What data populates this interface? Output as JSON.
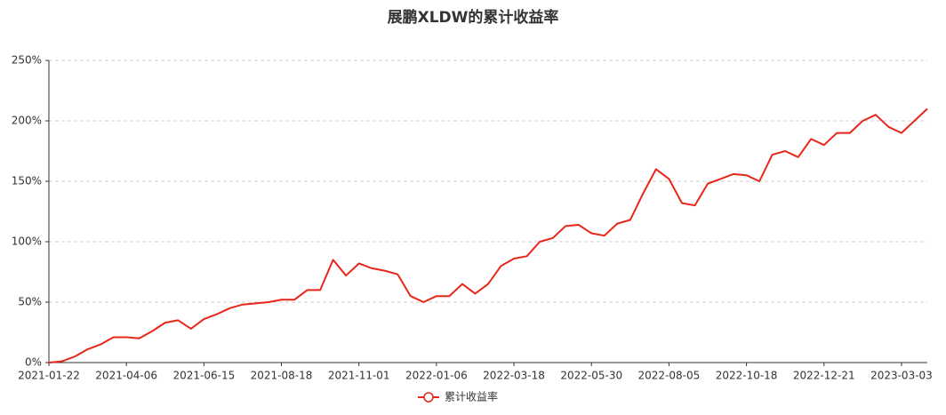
{
  "chart_data": {
    "type": "line",
    "title": "展鹏XLDW的累计收益率",
    "categories": [
      "2021-01-22",
      null,
      null,
      null,
      null,
      null,
      "2021-04-06",
      null,
      null,
      null,
      null,
      null,
      "2021-06-15",
      null,
      null,
      null,
      null,
      null,
      "2021-08-18",
      null,
      null,
      null,
      null,
      null,
      "2021-11-01",
      null,
      null,
      null,
      null,
      null,
      "2022-01-06",
      null,
      null,
      null,
      null,
      null,
      "2022-03-18",
      null,
      null,
      null,
      null,
      null,
      "2022-05-30",
      null,
      null,
      null,
      null,
      null,
      "2022-08-05",
      null,
      null,
      null,
      null,
      null,
      "2022-10-18",
      null,
      null,
      null,
      null,
      null,
      "2022-12-21",
      null,
      null,
      null,
      null,
      null,
      "2023-03-03",
      null,
      null
    ],
    "series": [
      {
        "name": "累计收益率",
        "color": "#e8261a",
        "values": [
          0,
          1,
          5,
          11,
          15,
          21,
          21,
          20,
          26,
          33,
          35,
          28,
          36,
          40,
          45,
          48,
          49,
          50,
          52,
          52,
          60,
          60,
          85,
          72,
          82,
          78,
          76,
          73,
          55,
          50,
          55,
          55,
          65,
          57,
          65,
          80,
          86,
          88,
          100,
          103,
          113,
          114,
          107,
          105,
          115,
          118,
          140,
          160,
          152,
          132,
          130,
          148,
          152,
          156,
          155,
          150,
          172,
          175,
          170,
          185,
          180,
          190,
          190,
          200,
          205,
          195,
          190,
          200,
          210
        ]
      }
    ],
    "ylim": [
      0,
      250
    ],
    "yticks": [
      {
        "value": 0,
        "label": "0%"
      },
      {
        "value": 50,
        "label": "50%"
      },
      {
        "value": 100,
        "label": "100%"
      },
      {
        "value": 150,
        "label": "150%"
      },
      {
        "value": 200,
        "label": "200%"
      },
      {
        "value": 250,
        "label": "250%"
      }
    ],
    "grid": true
  }
}
